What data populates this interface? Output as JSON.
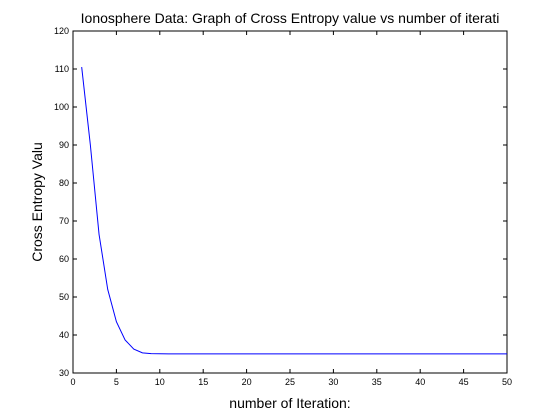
{
  "chart_data": {
    "type": "line",
    "title": "Ionosphere Data: Graph of Cross Entropy value vs number of iterati",
    "xlabel": "number of Iteration:",
    "ylabel": "Cross Entropy Valu",
    "xlim": [
      0,
      50
    ],
    "ylim": [
      30,
      120
    ],
    "grid": false,
    "x_ticks": [
      0,
      5,
      10,
      15,
      20,
      25,
      30,
      35,
      40,
      45,
      50
    ],
    "y_ticks": [
      30,
      40,
      50,
      60,
      70,
      80,
      90,
      100,
      110,
      120
    ],
    "x_tick_labels": [
      "0",
      "5",
      "10",
      "15",
      "20",
      "25",
      "30",
      "35",
      "40",
      "45",
      "50"
    ],
    "y_tick_labels": [
      "30",
      "40",
      "50",
      "60",
      "70",
      "80",
      "90",
      "100",
      "110",
      "120"
    ],
    "series": [
      {
        "color": "#0000ff",
        "x": [
          1,
          2,
          3,
          4,
          5,
          6,
          7,
          8,
          9,
          10,
          11,
          12,
          13,
          14,
          15,
          16,
          17,
          18,
          19,
          20,
          21,
          22,
          23,
          24,
          25,
          26,
          27,
          28,
          29,
          30,
          31,
          32,
          33,
          34,
          35,
          36,
          37,
          38,
          39,
          40,
          41,
          42,
          43,
          44,
          45,
          46,
          47,
          48,
          49,
          50
        ],
        "values": [
          110.5,
          90.0,
          66.5,
          52.0,
          43.5,
          38.7,
          36.3,
          35.3,
          35.1,
          35.05,
          35.03,
          35.02,
          35.02,
          35.02,
          35.02,
          35.02,
          35.02,
          35.02,
          35.02,
          35.02,
          35.02,
          35.02,
          35.02,
          35.02,
          35.02,
          35.02,
          35.02,
          35.02,
          35.02,
          35.02,
          35.02,
          35.02,
          35.02,
          35.02,
          35.02,
          35.02,
          35.02,
          35.02,
          35.02,
          35.02,
          35.02,
          35.02,
          35.02,
          35.02,
          35.02,
          35.02,
          35.02,
          35.02,
          35.02,
          35.02
        ]
      }
    ]
  }
}
